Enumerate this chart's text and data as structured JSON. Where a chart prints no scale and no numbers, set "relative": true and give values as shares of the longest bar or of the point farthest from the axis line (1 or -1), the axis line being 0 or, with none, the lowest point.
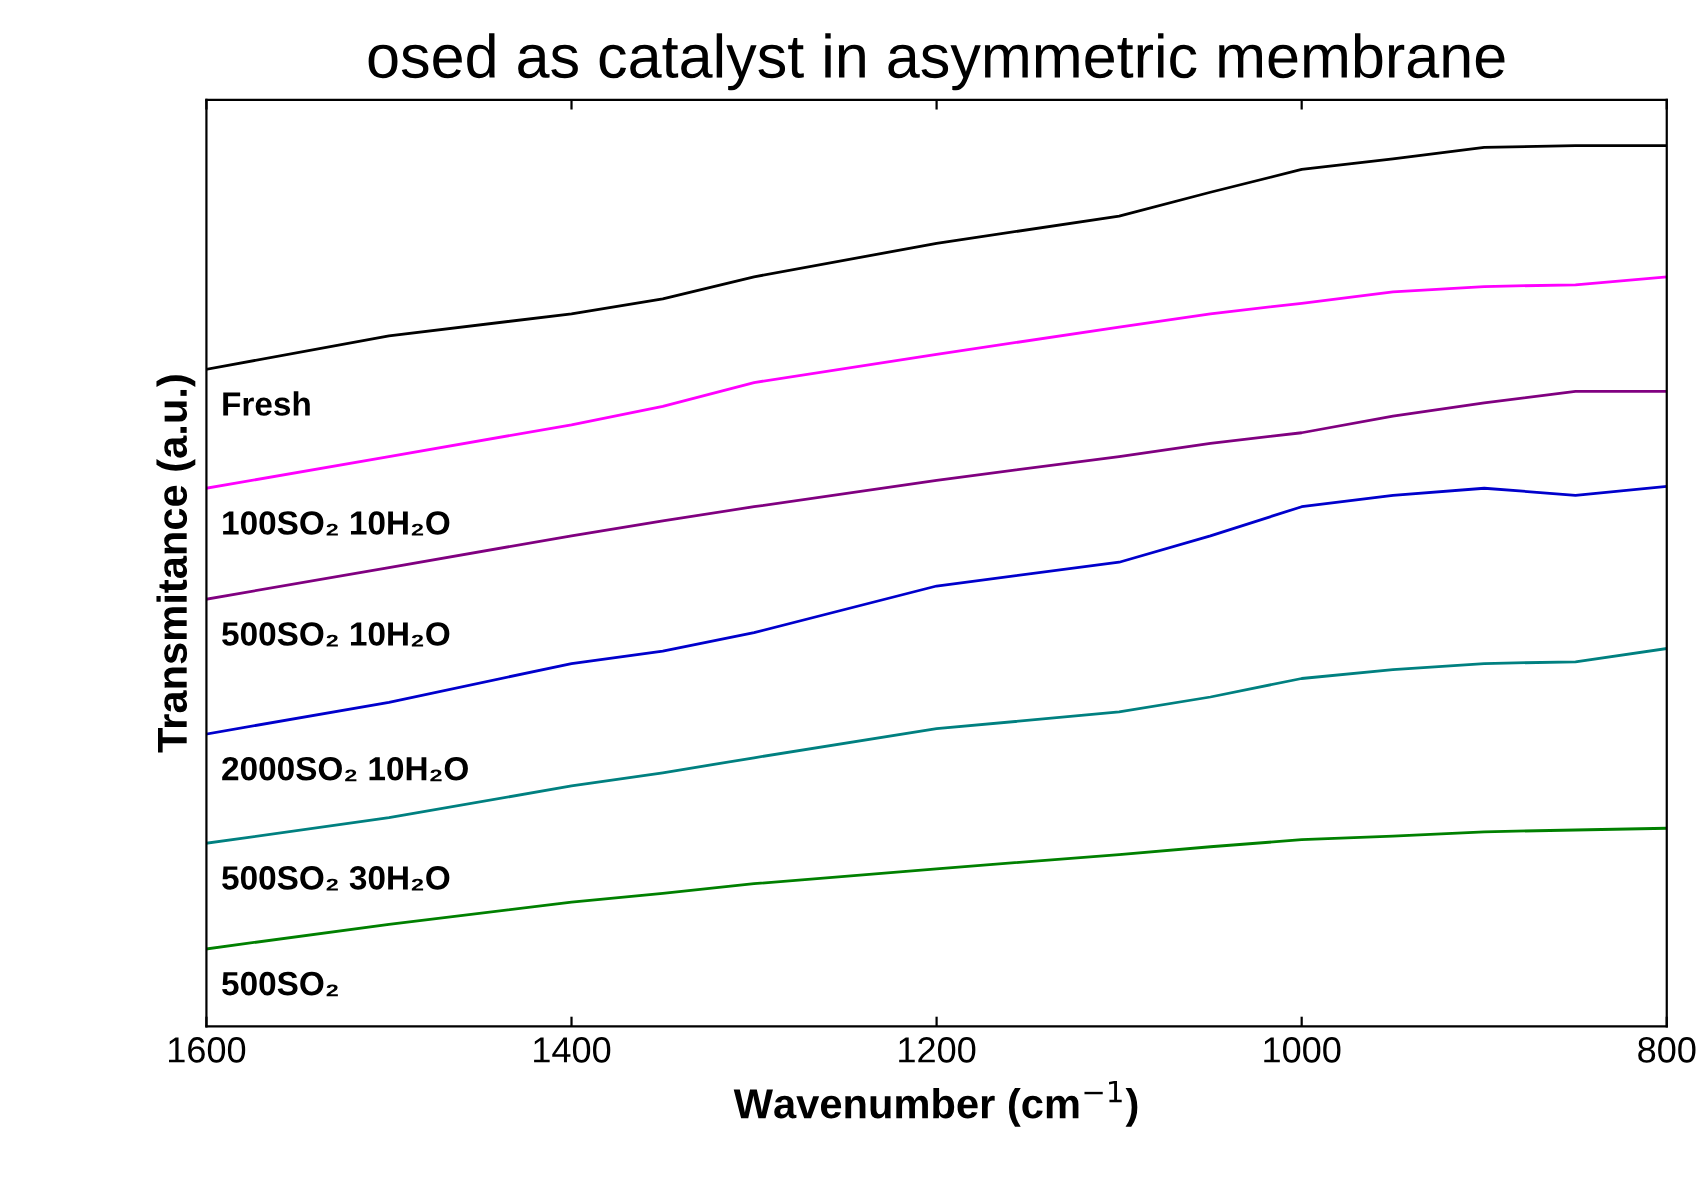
{
  "chart_data": {
    "type": "line",
    "title": "osed as catalyst in asymmetric membrane",
    "xlabel": "Wavenumber (cm$^{−1}$)",
    "ylabel": "Transmitance (a.u.)",
    "relative": true,
    "x": [
      1600,
      1500,
      1400,
      1350,
      1300,
      1200,
      1100,
      1050,
      1000,
      950,
      900,
      850,
      800
    ],
    "xlim": [
      1600,
      800
    ],
    "xticks": [
      1600,
      1400,
      1200,
      1000,
      800
    ],
    "grid": false,
    "legend": false,
    "marker": "none",
    "line_style": "solid",
    "series": [
      {
        "name": "Fresh",
        "color": "#000000",
        "values": [
          0.746,
          0.784,
          0.809,
          0.826,
          0.851,
          0.889,
          0.92,
          0.947,
          0.973,
          0.985,
          0.998,
          1.0,
          1.0
        ]
      },
      {
        "name": "100SO₂ 10H₂O",
        "color": "#ff00ff",
        "values": [
          0.611,
          0.647,
          0.683,
          0.704,
          0.731,
          0.763,
          0.794,
          0.809,
          0.821,
          0.834,
          0.84,
          0.842,
          0.851
        ]
      },
      {
        "name": "500SO₂ 10H₂O",
        "color": "#800080",
        "values": [
          0.485,
          0.521,
          0.557,
          0.574,
          0.59,
          0.62,
          0.647,
          0.662,
          0.674,
          0.693,
          0.708,
          0.721,
          0.721
        ]
      },
      {
        "name": "2000SO₂ 10H₂O",
        "color": "#0000cc",
        "values": [
          0.332,
          0.368,
          0.412,
          0.426,
          0.447,
          0.5,
          0.527,
          0.557,
          0.59,
          0.603,
          0.611,
          0.603,
          0.613
        ]
      },
      {
        "name": "500SO₂ 30H₂O",
        "color": "#008080",
        "values": [
          0.208,
          0.237,
          0.273,
          0.288,
          0.305,
          0.338,
          0.357,
          0.374,
          0.395,
          0.405,
          0.412,
          0.414,
          0.429
        ]
      },
      {
        "name": "500SO₂",
        "color": "#008000",
        "values": [
          0.088,
          0.116,
          0.141,
          0.151,
          0.162,
          0.179,
          0.195,
          0.204,
          0.212,
          0.216,
          0.221,
          0.223,
          0.225
        ]
      }
    ]
  }
}
